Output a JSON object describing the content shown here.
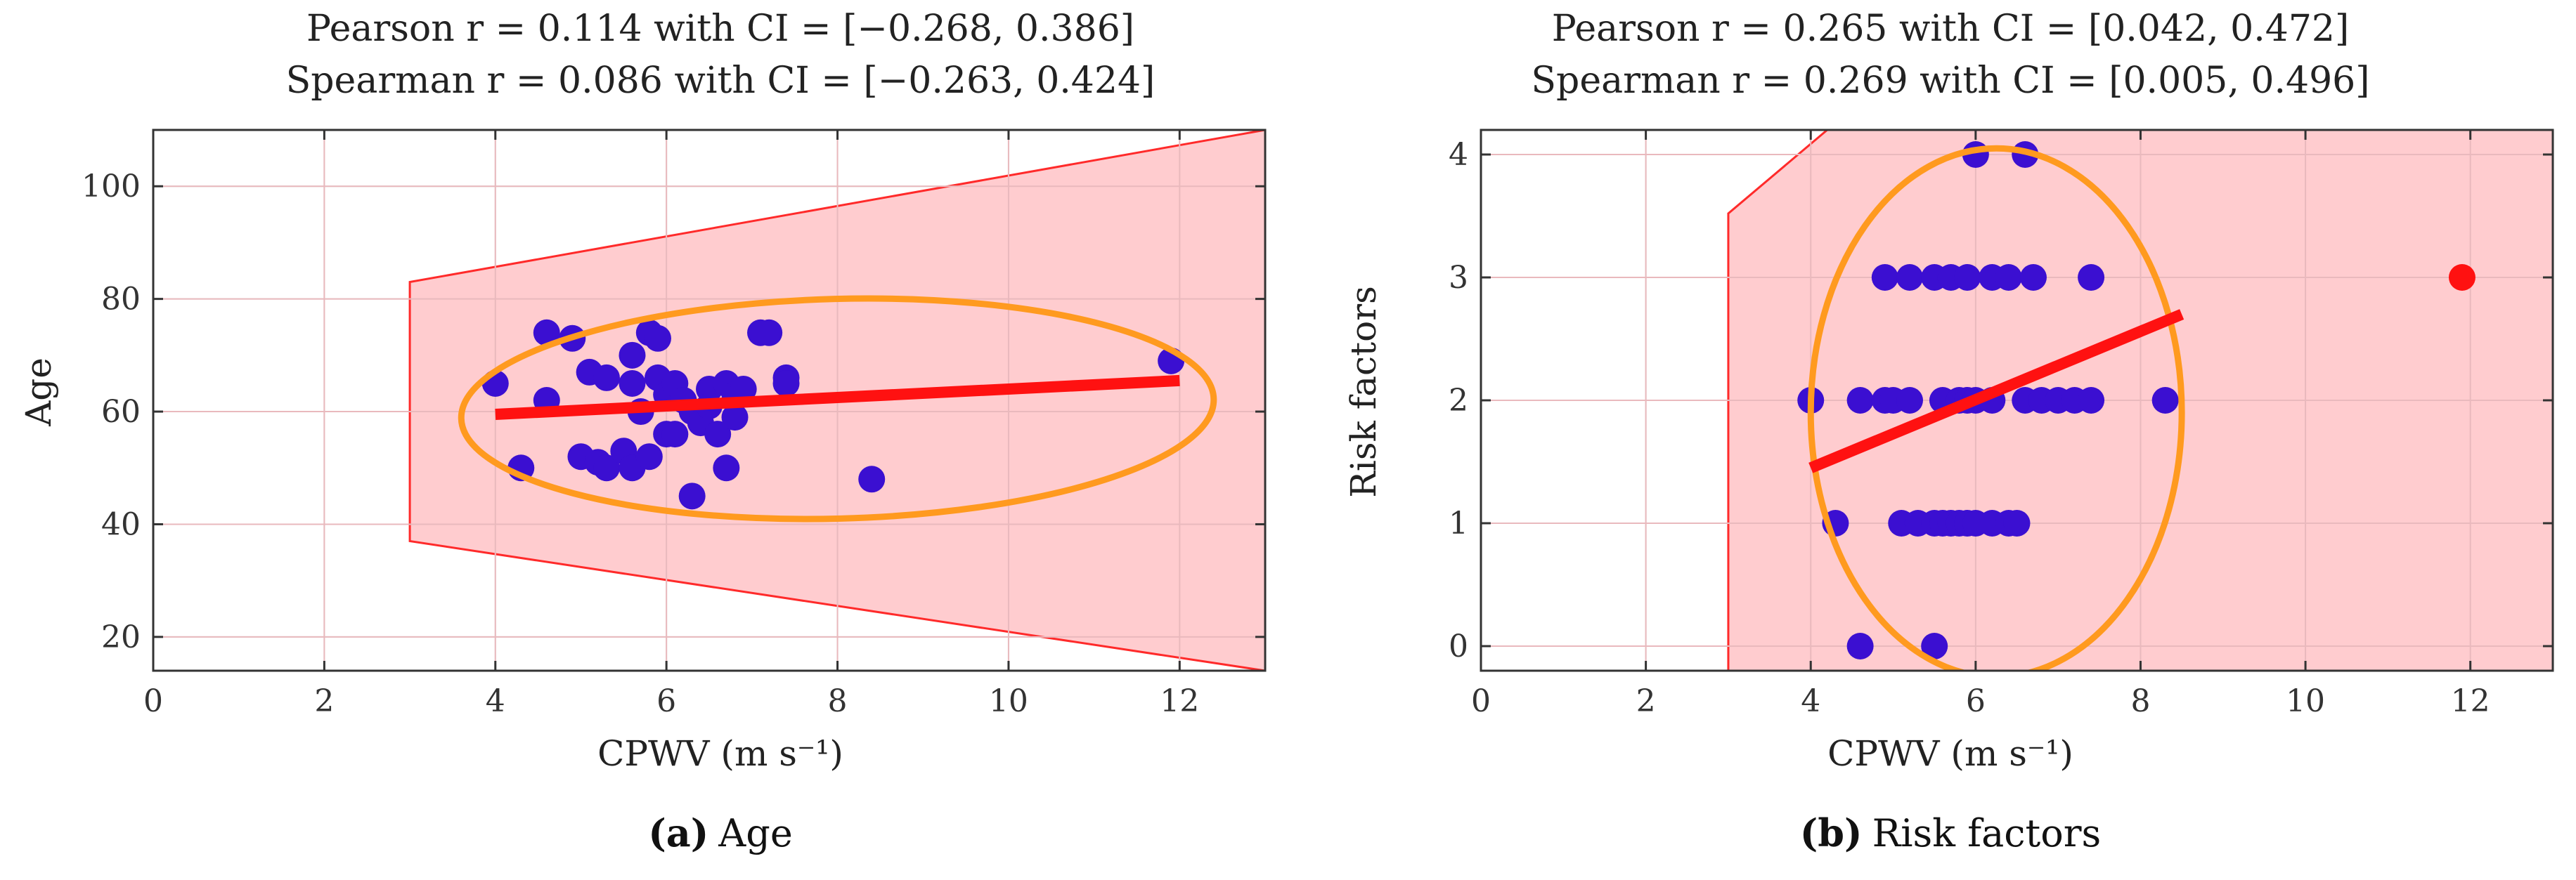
{
  "figure": {
    "panel_a_caption_letter": "(a)",
    "panel_a_caption_text": "Age",
    "panel_b_caption_letter": "(b)",
    "panel_b_caption_text": "Risk factors"
  },
  "chart_data": [
    {
      "type": "scatter",
      "title_line1": "Pearson r = 0.114 with CI = [−0.268, 0.386]",
      "title_line2": "Spearman r = 0.086 with CI = [−0.263, 0.424]",
      "xlabel": "CPWV (m s⁻¹)",
      "ylabel": "Age",
      "xlim": [
        0,
        13
      ],
      "ylim": [
        14,
        110
      ],
      "xticks": [
        0,
        2,
        4,
        6,
        8,
        10,
        12
      ],
      "yticks": [
        20,
        40,
        60,
        80,
        100
      ],
      "grid": true,
      "colors": {
        "points": "#3b0fd1",
        "fit": "#ff1111",
        "ellipse": "#ff9a1f",
        "region_fill": "#ffc9cc",
        "region_edge": "#ff2a2a"
      },
      "points": [
        [
          4.0,
          65
        ],
        [
          4.3,
          50
        ],
        [
          4.6,
          62
        ],
        [
          4.6,
          74
        ],
        [
          4.9,
          73
        ],
        [
          5.0,
          52
        ],
        [
          5.1,
          67
        ],
        [
          5.2,
          51
        ],
        [
          5.3,
          66
        ],
        [
          5.3,
          50
        ],
        [
          5.5,
          53
        ],
        [
          5.6,
          70
        ],
        [
          5.6,
          65
        ],
        [
          5.6,
          50
        ],
        [
          5.7,
          60
        ],
        [
          5.8,
          74
        ],
        [
          5.8,
          52
        ],
        [
          5.9,
          73
        ],
        [
          5.9,
          66
        ],
        [
          6.0,
          63
        ],
        [
          6.0,
          56
        ],
        [
          6.1,
          65
        ],
        [
          6.1,
          56
        ],
        [
          6.2,
          62
        ],
        [
          6.3,
          60
        ],
        [
          6.3,
          45
        ],
        [
          6.4,
          58
        ],
        [
          6.5,
          64
        ],
        [
          6.5,
          61
        ],
        [
          6.6,
          56
        ],
        [
          6.7,
          50
        ],
        [
          6.7,
          65
        ],
        [
          6.8,
          59
        ],
        [
          6.8,
          63
        ],
        [
          6.9,
          64
        ],
        [
          7.1,
          74
        ],
        [
          7.2,
          74
        ],
        [
          7.4,
          66
        ],
        [
          7.4,
          65
        ],
        [
          8.4,
          48
        ],
        [
          11.9,
          69
        ]
      ],
      "fit_line": {
        "x": [
          4.0,
          12.0
        ],
        "y": [
          59.5,
          65.5
        ]
      },
      "ellipse": {
        "center": [
          8.0,
          60.5
        ],
        "semi_x": 4.4,
        "semi_y": 19.5,
        "angle_deg": 1.5
      },
      "region_polygon": [
        [
          3.0,
          37
        ],
        [
          3.0,
          83
        ],
        [
          13.0,
          110
        ],
        [
          13.0,
          14
        ]
      ],
      "outliers": []
    },
    {
      "type": "scatter",
      "title_line1": "Pearson r = 0.265 with CI = [0.042, 0.472]",
      "title_line2": "Spearman r = 0.269 with CI = [0.005, 0.496]",
      "xlabel": "CPWV (m s⁻¹)",
      "ylabel": "Risk factors",
      "xlim": [
        0,
        13
      ],
      "ylim": [
        -0.2,
        4.2
      ],
      "xticks": [
        0,
        2,
        4,
        6,
        8,
        10,
        12
      ],
      "yticks": [
        0,
        1,
        2,
        3,
        4
      ],
      "grid": true,
      "colors": {
        "points": "#3b0fd1",
        "fit": "#ff1111",
        "ellipse": "#ff9a1f",
        "region_fill": "#ffc9cc",
        "region_edge": "#ff2a2a",
        "outlier": "#ff1111"
      },
      "points": [
        [
          4.6,
          0
        ],
        [
          5.5,
          0
        ],
        [
          4.3,
          1
        ],
        [
          5.1,
          1
        ],
        [
          5.3,
          1
        ],
        [
          5.5,
          1
        ],
        [
          5.6,
          1
        ],
        [
          5.7,
          1
        ],
        [
          5.8,
          1
        ],
        [
          5.9,
          1
        ],
        [
          6.0,
          1
        ],
        [
          6.2,
          1
        ],
        [
          6.4,
          1
        ],
        [
          6.5,
          1
        ],
        [
          4.0,
          2
        ],
        [
          4.6,
          2
        ],
        [
          4.9,
          2
        ],
        [
          5.0,
          2
        ],
        [
          5.2,
          2
        ],
        [
          5.6,
          2
        ],
        [
          5.8,
          2
        ],
        [
          5.9,
          2
        ],
        [
          6.0,
          2
        ],
        [
          6.2,
          2
        ],
        [
          6.6,
          2
        ],
        [
          6.8,
          2
        ],
        [
          7.0,
          2
        ],
        [
          7.2,
          2
        ],
        [
          7.4,
          2
        ],
        [
          8.3,
          2
        ],
        [
          4.9,
          3
        ],
        [
          5.2,
          3
        ],
        [
          5.5,
          3
        ],
        [
          5.7,
          3
        ],
        [
          5.9,
          3
        ],
        [
          6.2,
          3
        ],
        [
          6.4,
          3
        ],
        [
          6.7,
          3
        ],
        [
          7.4,
          3
        ],
        [
          6.0,
          4
        ],
        [
          6.6,
          4
        ]
      ],
      "fit_line": {
        "x": [
          4.0,
          8.5
        ],
        "y": [
          1.45,
          2.7
        ]
      },
      "ellipse": {
        "center": [
          6.25,
          1.9
        ],
        "semi_x": 2.25,
        "semi_y": 2.15,
        "angle_deg": 0
      },
      "region_polygon": [
        [
          3.0,
          -0.2
        ],
        [
          3.0,
          3.52
        ],
        [
          4.2,
          4.2
        ],
        [
          13.0,
          4.2
        ],
        [
          13.0,
          -0.2
        ]
      ],
      "outliers": [
        [
          11.9,
          3
        ]
      ]
    }
  ]
}
